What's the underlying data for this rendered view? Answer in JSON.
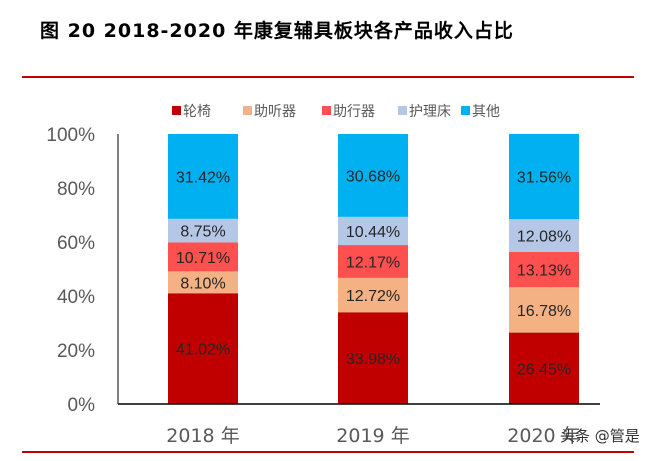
{
  "title": "图 20 2018-2020 年康复辅具板块各产品收入占比",
  "watermark": "头条 @管是",
  "chart_data": {
    "type": "bar",
    "stacked": true,
    "title": "",
    "xlabel": "",
    "ylabel": "",
    "categories": [
      "2018 年",
      "2019 年",
      "2020 年"
    ],
    "ylim": [
      0,
      100
    ],
    "yticks": [
      "0%",
      "20%",
      "40%",
      "60%",
      "80%",
      "100%"
    ],
    "grid": false,
    "legend_position": "top",
    "series": [
      {
        "name": "轮椅",
        "color": "#C00000",
        "values": [
          41.02,
          33.98,
          26.45
        ],
        "labels": [
          "41.02%",
          "33.98%",
          "26.45%"
        ]
      },
      {
        "name": "助听器",
        "color": "#F4B183",
        "values": [
          8.1,
          12.72,
          16.78
        ],
        "labels": [
          "8.10%",
          "12.72%",
          "16.78%"
        ]
      },
      {
        "name": "助行器",
        "color": "#FF5050",
        "values": [
          10.71,
          12.17,
          13.13
        ],
        "labels": [
          "10.71%",
          "12.17%",
          "13.13%"
        ]
      },
      {
        "name": "护理床",
        "color": "#B4C7E7",
        "values": [
          8.75,
          10.44,
          12.08
        ],
        "labels": [
          "8.75%",
          "10.44%",
          "12.08%"
        ]
      },
      {
        "name": "其他",
        "color": "#00B0F0",
        "values": [
          31.42,
          30.68,
          31.56
        ],
        "labels": [
          "31.42%",
          "30.68%",
          "31.56%"
        ]
      }
    ]
  }
}
